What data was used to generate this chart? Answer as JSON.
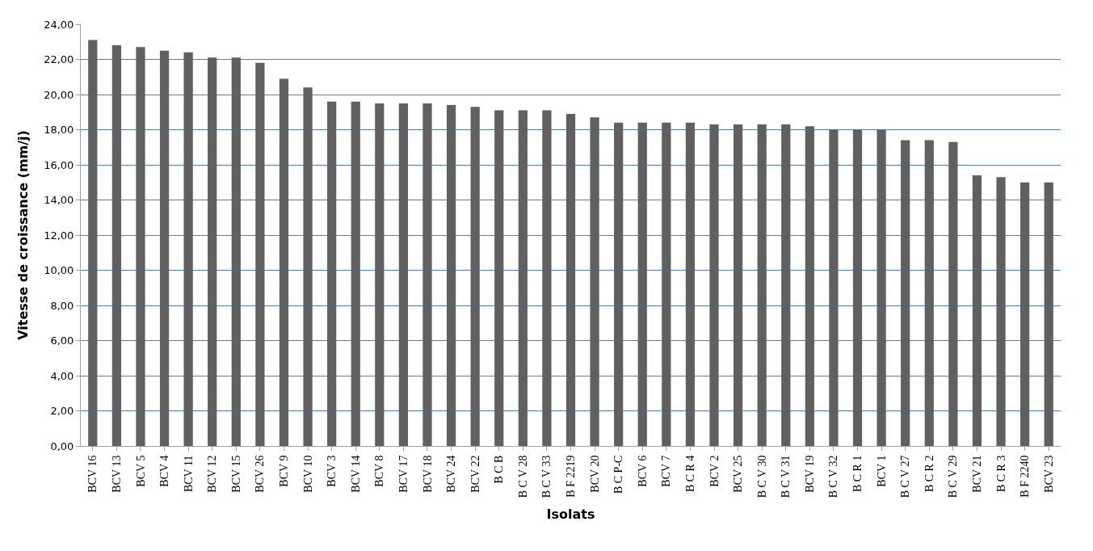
{
  "chart_data": {
    "type": "bar",
    "xlabel": "Isolats",
    "ylabel": "Vitesse de croissance (mm/j)",
    "categories": [
      "BCV 16",
      "BCV 13",
      "BCV 5",
      "BCV 4",
      "BCV 11",
      "BCV 12",
      "BCV 15",
      "BCV 26",
      "BCV 9",
      "BCV 10",
      "BCV 3",
      "BCV 14",
      "BCV 8",
      "BCV 17",
      "BCV 18",
      "BCV 24",
      "BCV 22",
      "B C B",
      "B C V 28",
      "B C V 33",
      "B F 2219",
      "BCV 20",
      "B C P-C",
      "BCV 6",
      "BCV 7",
      "B C R 4",
      "BCV 2",
      "BCV 25",
      "B C V 30",
      "B C V 31",
      "BCV 19",
      "B C V 32",
      "B C R 1",
      "BCV 1",
      "B C V 27",
      "B C R 2",
      "B C V 29",
      "BCV 21",
      "B C R 3",
      "B F 2240",
      "BCV 23"
    ],
    "values": [
      23.1,
      22.8,
      22.7,
      22.5,
      22.4,
      22.1,
      22.1,
      21.8,
      20.9,
      20.4,
      19.6,
      19.6,
      19.5,
      19.5,
      19.5,
      19.4,
      19.3,
      19.1,
      19.1,
      19.1,
      18.9,
      18.7,
      18.4,
      18.4,
      18.4,
      18.4,
      18.3,
      18.3,
      18.3,
      18.3,
      18.2,
      18.0,
      18.0,
      18.0,
      17.4,
      17.4,
      17.3,
      15.4,
      15.3,
      15.0,
      15.0
    ],
    "color": "#606060",
    "ylim": [
      0,
      24
    ],
    "yticks": [
      {
        "value": 0,
        "label": "0,00"
      },
      {
        "value": 2,
        "label": "2,00"
      },
      {
        "value": 4,
        "label": "4,00"
      },
      {
        "value": 6,
        "label": "6,00"
      },
      {
        "value": 8,
        "label": "8,00"
      },
      {
        "value": 10,
        "label": "10,00"
      },
      {
        "value": 12,
        "label": "12,00"
      },
      {
        "value": 14,
        "label": "14,00"
      },
      {
        "value": 16,
        "label": "16,00"
      },
      {
        "value": 18,
        "label": "18,00"
      },
      {
        "value": 20,
        "label": "20,00"
      },
      {
        "value": 22,
        "label": "22,00"
      },
      {
        "value": 24,
        "label": "24,00"
      }
    ],
    "grid": "y"
  }
}
